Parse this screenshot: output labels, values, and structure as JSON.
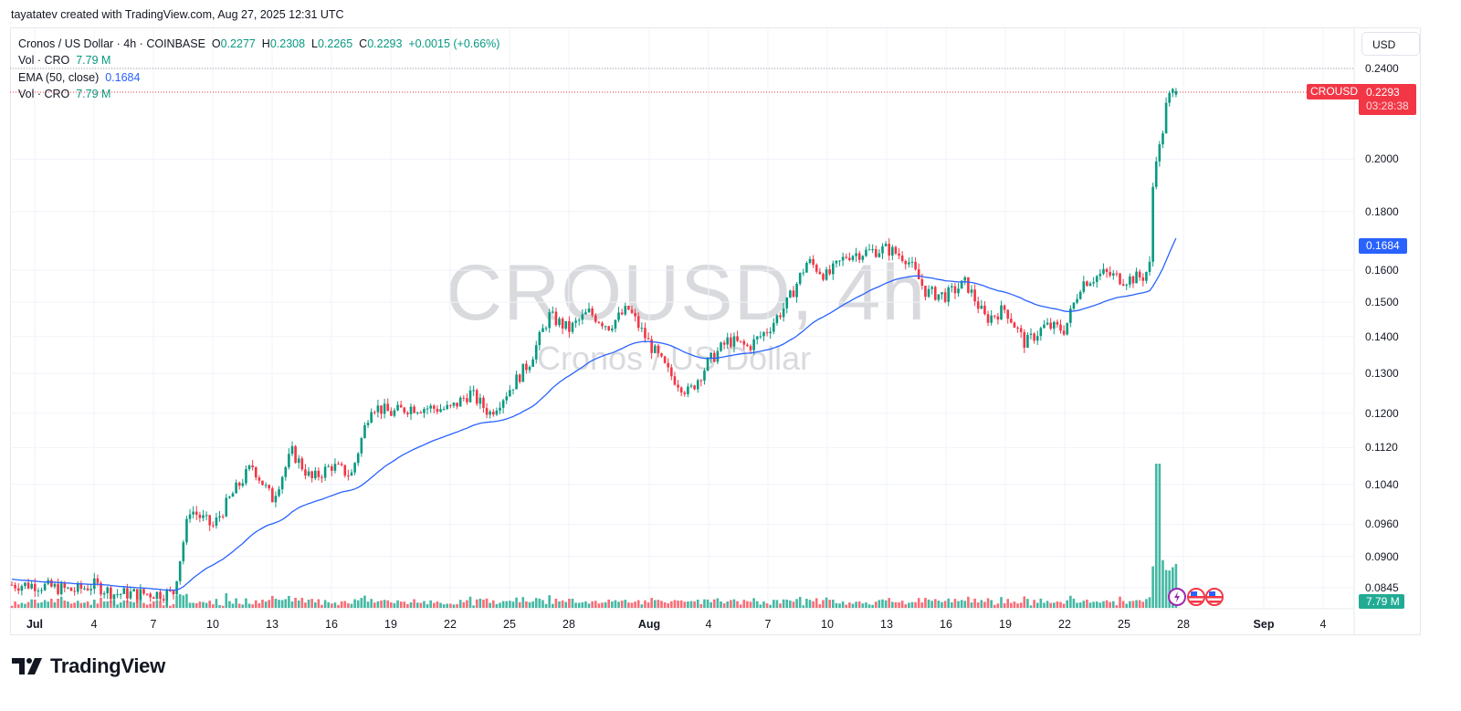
{
  "credit": "tayatatev created with TradingView.com, Aug 27, 2025 12:31 UTC",
  "legend": {
    "symbol_line": "Cronos / US Dollar · 4h · COINBASE",
    "open_label": "O",
    "open": "0.2277",
    "high_label": "H",
    "high": "0.2308",
    "low_label": "L",
    "low": "0.2265",
    "close_label": "C",
    "close": "0.2293",
    "change": "+0.0015 (+0.66%)",
    "vol_label": "Vol · CRO",
    "vol_value": "7.79 M",
    "ema_label": "EMA (50, close)",
    "ema_value": "0.1684",
    "vol2_label": "Vol · CRO",
    "vol2_value": "7.79 M"
  },
  "currency_button": "USD",
  "watermark": {
    "main": "CROUSD, 4h",
    "sub": "Cronos / US Dollar"
  },
  "price_tag": {
    "symbol": "CROUSD",
    "price": "0.2293",
    "countdown": "03:28:38",
    "color": "#f23645"
  },
  "ema_tag": {
    "value": "0.1684",
    "color": "#2962ff"
  },
  "volume_tag": {
    "value": "7.79 M",
    "color": "#22ab94"
  },
  "logo_text": "TradingView",
  "colors": {
    "up": "#089981",
    "down": "#f23645",
    "vol_up": "#22ab94",
    "vol_down": "#f7525f",
    "ema": "#2962ff",
    "grid": "#f0f3fa"
  },
  "chart_data": {
    "type": "candlestick",
    "title": "Cronos / US Dollar · 4h · COINBASE",
    "symbol": "CROUSD",
    "timeframe": "4h",
    "scale": "log",
    "ylabel": "USD",
    "y_ticks": [
      "0.2400",
      "0.2000",
      "0.1800",
      "0.1600",
      "0.1500",
      "0.1400",
      "0.1300",
      "0.1200",
      "0.1120",
      "0.1040",
      "0.0960",
      "0.0900",
      "0.0845"
    ],
    "x_ticks": [
      "Jul",
      "4",
      "7",
      "10",
      "13",
      "16",
      "19",
      "22",
      "25",
      "28",
      "Aug",
      "4",
      "7",
      "10",
      "13",
      "16",
      "19",
      "22",
      "25",
      "28",
      "Sep",
      "4"
    ],
    "last_bar": {
      "open": 0.2277,
      "high": 0.2308,
      "low": 0.2265,
      "close": 0.2293,
      "change": 0.0015,
      "change_pct": 0.66
    },
    "ema": {
      "period": 50,
      "source": "close",
      "last": 0.1684
    },
    "volume_last": "7.79M",
    "approx_close_path": [
      {
        "date": "Jul 1",
        "close": 0.085
      },
      {
        "date": "Jul 3",
        "close": 0.084
      },
      {
        "date": "Jul 4",
        "close": 0.085
      },
      {
        "date": "Jul 5",
        "close": 0.0835
      },
      {
        "date": "Jul 8",
        "close": 0.0835
      },
      {
        "date": "Jul 8 20:00",
        "close": 0.099
      },
      {
        "date": "Jul 9",
        "close": 0.0985
      },
      {
        "date": "Jul 10",
        "close": 0.0955
      },
      {
        "date": "Jul 11",
        "close": 0.102
      },
      {
        "date": "Jul 12",
        "close": 0.108
      },
      {
        "date": "Jul 13",
        "close": 0.101
      },
      {
        "date": "Jul 14",
        "close": 0.111
      },
      {
        "date": "Jul 15",
        "close": 0.105
      },
      {
        "date": "Jul 16",
        "close": 0.108
      },
      {
        "date": "Jul 17",
        "close": 0.106
      },
      {
        "date": "Jul 18",
        "close": 0.122
      },
      {
        "date": "Jul 19",
        "close": 0.12
      },
      {
        "date": "Jul 20",
        "close": 0.1215
      },
      {
        "date": "Jul 22",
        "close": 0.121
      },
      {
        "date": "Jul 23",
        "close": 0.125
      },
      {
        "date": "Jul 24",
        "close": 0.12
      },
      {
        "date": "Jul 25",
        "close": 0.126
      },
      {
        "date": "Jul 26",
        "close": 0.133
      },
      {
        "date": "Jul 27",
        "close": 0.146
      },
      {
        "date": "Jul 28",
        "close": 0.142
      },
      {
        "date": "Jul 29",
        "close": 0.147
      },
      {
        "date": "Jul 30",
        "close": 0.143
      },
      {
        "date": "Jul 31",
        "close": 0.148
      },
      {
        "date": "Aug 1",
        "close": 0.138
      },
      {
        "date": "Aug 2",
        "close": 0.13
      },
      {
        "date": "Aug 3",
        "close": 0.125
      },
      {
        "date": "Aug 4",
        "close": 0.133
      },
      {
        "date": "Aug 5",
        "close": 0.139
      },
      {
        "date": "Aug 6",
        "close": 0.137
      },
      {
        "date": "Aug 7",
        "close": 0.142
      },
      {
        "date": "Aug 8",
        "close": 0.15
      },
      {
        "date": "Aug 9",
        "close": 0.163
      },
      {
        "date": "Aug 10",
        "close": 0.158
      },
      {
        "date": "Aug 11",
        "close": 0.165
      },
      {
        "date": "Aug 12",
        "close": 0.166
      },
      {
        "date": "Aug 13",
        "close": 0.167
      },
      {
        "date": "Aug 14",
        "close": 0.164
      },
      {
        "date": "Aug 15",
        "close": 0.153
      },
      {
        "date": "Aug 16",
        "close": 0.152
      },
      {
        "date": "Aug 17",
        "close": 0.156
      },
      {
        "date": "Aug 18",
        "close": 0.145
      },
      {
        "date": "Aug 19",
        "close": 0.148
      },
      {
        "date": "Aug 20",
        "close": 0.138
      },
      {
        "date": "Aug 21",
        "close": 0.143
      },
      {
        "date": "Aug 22",
        "close": 0.142
      },
      {
        "date": "Aug 22 20:00",
        "close": 0.156
      },
      {
        "date": "Aug 24",
        "close": 0.159
      },
      {
        "date": "Aug 25",
        "close": 0.157
      },
      {
        "date": "Aug 26",
        "close": 0.158
      },
      {
        "date": "Aug 26 08:00",
        "close": 0.162
      },
      {
        "date": "Aug 26 12:00",
        "close": 0.2
      },
      {
        "date": "Aug 26 20:00",
        "close": 0.205
      },
      {
        "date": "Aug 27 04:00",
        "close": 0.225
      },
      {
        "date": "Aug 27 12:00",
        "close": 0.2293
      }
    ],
    "grid": true,
    "legend_position": "top-left"
  }
}
